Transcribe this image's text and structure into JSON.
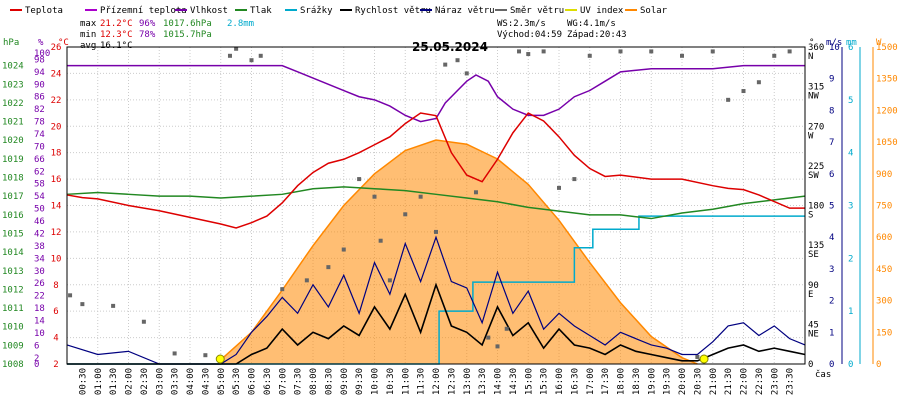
{
  "chart_data": {
    "type": "line",
    "title": "25.05.2024",
    "xlabel": "čas",
    "x_range_hours": [
      0,
      24
    ],
    "x_tick_labels": [
      "00:30",
      "01:00",
      "01:30",
      "02:00",
      "02:30",
      "03:00",
      "03:30",
      "04:00",
      "04:30",
      "05:00",
      "05:30",
      "06:00",
      "06:30",
      "07:00",
      "07:30",
      "08:00",
      "08:30",
      "09:00",
      "09:30",
      "10:00",
      "10:30",
      "11:00",
      "11:30",
      "12:00",
      "12:30",
      "13:00",
      "13:30",
      "14:00",
      "14:30",
      "15:00",
      "15:30",
      "16:00",
      "16:30",
      "17:00",
      "17:30",
      "18:00",
      "18:30",
      "19:00",
      "19:30",
      "20:00",
      "20:30",
      "21:00",
      "21:30",
      "22:00",
      "22:30",
      "23:00",
      "23:30"
    ],
    "legend": [
      {
        "name": "Teplota",
        "color": "#dd0000"
      },
      {
        "name": "Přízemní teplota",
        "color": "#aa00cc"
      },
      {
        "name": "Vlhkost",
        "color": "#7700aa"
      },
      {
        "name": "Tlak",
        "color": "#228822"
      },
      {
        "name": "Srážky",
        "color": "#00aacc"
      },
      {
        "name": "Rychlost větru",
        "color": "#000000"
      },
      {
        "name": "Náraz větru",
        "color": "#000080"
      },
      {
        "name": "Směr větru",
        "color": "#666666"
      },
      {
        "name": "UV index",
        "color": "#dddd00"
      },
      {
        "name": "Solar",
        "color": "#ff8800"
      }
    ],
    "stats": {
      "max_label": "max",
      "max_temp": "21.2°C",
      "max_hum": "96%",
      "max_press": "1017.6hPa",
      "rain_total": "2.8mm",
      "min_label": "min",
      "min_temp": "12.3°C",
      "min_hum": "78%",
      "min_press": "1015.7hPa",
      "avg_label": "avg",
      "avg_temp": "16.1°C"
    },
    "info": {
      "ws": "WS:2.3m/s",
      "wg": "WG:4.1m/s",
      "sunrise": "Východ:04:59",
      "sunset": "Západ:20:43"
    },
    "axes": {
      "hPa": {
        "label": "hPa",
        "range": [
          1008,
          1025
        ],
        "ticks": [
          1008,
          1009,
          1010,
          1011,
          1012,
          1013,
          1014,
          1015,
          1016,
          1017,
          1018,
          1019,
          1020,
          1021,
          1022,
          1023,
          1024
        ],
        "color": "#228822"
      },
      "percent": {
        "label": "%",
        "range": [
          0,
          102
        ],
        "ticks": [
          0,
          2,
          6,
          10,
          14,
          18,
          22,
          26,
          30,
          34,
          38,
          42,
          46,
          50,
          54,
          58,
          62,
          66,
          70,
          74,
          78,
          82,
          86,
          90,
          94,
          98,
          100
        ],
        "color": "#7700aa"
      },
      "celsius": {
        "label": "°C",
        "range": [
          2,
          26
        ],
        "ticks": [
          2,
          4,
          6,
          8,
          10,
          12,
          14,
          16,
          18,
          20,
          22,
          24,
          26
        ],
        "color": "#dd0000"
      },
      "wind_dir": {
        "label": "°",
        "ticks": [
          {
            "deg": "0",
            "dir": ""
          },
          {
            "deg": "45",
            "dir": "NE"
          },
          {
            "deg": "90",
            "dir": "E"
          },
          {
            "deg": "135",
            "dir": "SE"
          },
          {
            "deg": "180",
            "dir": "S"
          },
          {
            "deg": "225",
            "dir": "SW"
          },
          {
            "deg": "270",
            "dir": "W"
          },
          {
            "deg": "315",
            "dir": "NW"
          },
          {
            "deg": "360",
            "dir": "N"
          }
        ]
      },
      "ms": {
        "label": "m/s",
        "range": [
          0,
          10
        ],
        "ticks": [
          0,
          1,
          2,
          3,
          4,
          5,
          6,
          7,
          8,
          9,
          10
        ]
      },
      "mm": {
        "label": "mm",
        "range": [
          0,
          6
        ],
        "ticks": [
          0,
          1,
          2,
          3,
          4,
          5,
          6
        ]
      },
      "W": {
        "label": "W",
        "range": [
          0,
          1500
        ],
        "ticks": [
          0,
          150,
          300,
          450,
          600,
          750,
          900,
          1050,
          1200,
          1350,
          1500
        ]
      }
    },
    "series": {
      "temperature": {
        "x": [
          0,
          0.5,
          1,
          2,
          3,
          4,
          5,
          5.5,
          6,
          6.5,
          7,
          7.5,
          8,
          8.5,
          9,
          9.5,
          10,
          10.5,
          11,
          11.5,
          12,
          12.5,
          13,
          13.5,
          14,
          14.5,
          15,
          15.5,
          16,
          16.5,
          17,
          17.5,
          18,
          19,
          20,
          21,
          21.5,
          22,
          22.5,
          23,
          23.5,
          24
        ],
        "y": [
          14.8,
          14.6,
          14.5,
          14,
          13.6,
          13.1,
          12.6,
          12.3,
          12.7,
          13.2,
          14.2,
          15.5,
          16.5,
          17.2,
          17.5,
          18,
          18.6,
          19.2,
          20.2,
          21,
          20.8,
          18,
          16.3,
          15.8,
          17.5,
          19.5,
          21,
          20.4,
          19.2,
          17.8,
          16.8,
          16.2,
          16.3,
          16,
          16,
          15.5,
          15.3,
          15.2,
          14.8,
          14.3,
          13.8,
          13.8
        ]
      },
      "humidity": {
        "x": [
          0,
          6,
          7,
          7.5,
          8,
          8.5,
          9,
          9.5,
          10,
          10.5,
          11,
          11.5,
          12,
          12.3,
          12.7,
          13,
          13.3,
          13.7,
          14,
          14.5,
          15,
          15.5,
          16,
          16.5,
          17,
          17.5,
          18,
          19,
          20,
          21,
          22,
          23,
          24
        ],
        "y": [
          96,
          96,
          96,
          94,
          92,
          90,
          88,
          86,
          85,
          83,
          80,
          78,
          79,
          84,
          88,
          91,
          93,
          91,
          86,
          82,
          80,
          80,
          82,
          86,
          88,
          91,
          94,
          95,
          95,
          95,
          96,
          96,
          96
        ]
      },
      "pressure": {
        "x": [
          0,
          1,
          2,
          3,
          4,
          5,
          6,
          7,
          8,
          9,
          10,
          11,
          12,
          13,
          14,
          15,
          16,
          17,
          18,
          19,
          20,
          21,
          22,
          23,
          24
        ],
        "y": [
          1017.1,
          1017.2,
          1017.1,
          1017.0,
          1017.0,
          1016.9,
          1017.0,
          1017.1,
          1017.4,
          1017.5,
          1017.4,
          1017.3,
          1017.1,
          1016.9,
          1016.7,
          1016.4,
          1016.2,
          1016.0,
          1016.0,
          1015.8,
          1016.1,
          1016.3,
          1016.6,
          1016.8,
          1017.0
        ]
      },
      "rain_cumulative": {
        "x": [
          0,
          10,
          12,
          12.1,
          13,
          13.2,
          15.5,
          16.5,
          17,
          17.1,
          18,
          18.5,
          18.6,
          24
        ],
        "y": [
          0,
          0,
          0,
          1.0,
          1.0,
          1.55,
          1.55,
          2.2,
          2.2,
          2.55,
          2.55,
          2.55,
          2.8,
          2.8
        ]
      },
      "solar": {
        "x": [
          5,
          6,
          7,
          8,
          9,
          10,
          11,
          12,
          13,
          14,
          15,
          16,
          17,
          18,
          19,
          20,
          20.5
        ],
        "y": [
          20,
          150,
          350,
          560,
          750,
          900,
          1010,
          1060,
          1040,
          970,
          850,
          680,
          480,
          290,
          130,
          30,
          0
        ]
      },
      "wind_speed": {
        "x": [
          0,
          1,
          2,
          3,
          4,
          5,
          5.5,
          6,
          6.5,
          7,
          7.5,
          8,
          8.5,
          9,
          9.5,
          10,
          10.5,
          11,
          11.5,
          12,
          12.5,
          13,
          13.5,
          14,
          14.5,
          15,
          15.5,
          16,
          16.5,
          17,
          17.5,
          18,
          18.5,
          19,
          19.5,
          20,
          20.5,
          21,
          21.5,
          22,
          22.5,
          23,
          23.5,
          24
        ],
        "y": [
          0,
          0,
          0,
          0,
          0,
          0,
          0,
          0.3,
          0.5,
          1.1,
          0.6,
          1.0,
          0.8,
          1.2,
          0.9,
          1.8,
          1.1,
          2.2,
          1.0,
          2.5,
          1.2,
          1.0,
          0.6,
          1.8,
          0.9,
          1.3,
          0.5,
          1.1,
          0.6,
          0.5,
          0.3,
          0.6,
          0.4,
          0.3,
          0.2,
          0.1,
          0.1,
          0.3,
          0.5,
          0.6,
          0.4,
          0.5,
          0.4,
          0.3
        ]
      },
      "wind_gust": {
        "x": [
          0,
          1,
          2,
          3,
          4,
          5,
          5.5,
          6,
          6.5,
          7,
          7.5,
          8,
          8.5,
          9,
          9.5,
          10,
          10.5,
          11,
          11.5,
          12,
          12.5,
          13,
          13.5,
          14,
          14.5,
          15,
          15.5,
          16,
          16.5,
          17,
          17.5,
          18,
          18.5,
          19,
          19.5,
          20,
          20.5,
          21,
          21.5,
          22,
          22.5,
          23,
          23.5,
          24
        ],
        "y": [
          0.6,
          0.3,
          0.4,
          0,
          0,
          0,
          0.3,
          1.0,
          1.5,
          2.1,
          1.6,
          2.5,
          1.8,
          2.8,
          1.6,
          3.2,
          2.2,
          3.8,
          2.6,
          4.0,
          2.6,
          2.4,
          1.3,
          2.9,
          1.6,
          2.3,
          1.1,
          1.6,
          1.2,
          0.9,
          0.6,
          1.0,
          0.8,
          0.6,
          0.5,
          0.3,
          0.3,
          0.7,
          1.2,
          1.3,
          0.9,
          1.2,
          0.8,
          0.6
        ]
      },
      "wind_direction": {
        "x": [
          0.1,
          0.5,
          1.5,
          2.5,
          3.5,
          4.5,
          5.3,
          5.5,
          6,
          6.3,
          7,
          7.8,
          8.5,
          9,
          9.5,
          10,
          10.2,
          10.5,
          11,
          11.5,
          12,
          12.3,
          12.7,
          13,
          13.3,
          13.7,
          14,
          14.3,
          14.7,
          15,
          15.5,
          16,
          16.5,
          17,
          18,
          19,
          20,
          20.5,
          21,
          21.5,
          22,
          22.5,
          23,
          23.5
        ],
        "y": [
          78,
          68,
          66,
          48,
          12,
          10,
          350,
          358,
          345,
          350,
          85,
          95,
          110,
          130,
          210,
          190,
          140,
          95,
          170,
          190,
          150,
          340,
          345,
          330,
          195,
          30,
          20,
          40,
          355,
          352,
          355,
          200,
          210,
          350,
          355,
          355,
          350,
          8,
          355,
          300,
          310,
          320,
          350,
          355
        ]
      }
    }
  }
}
